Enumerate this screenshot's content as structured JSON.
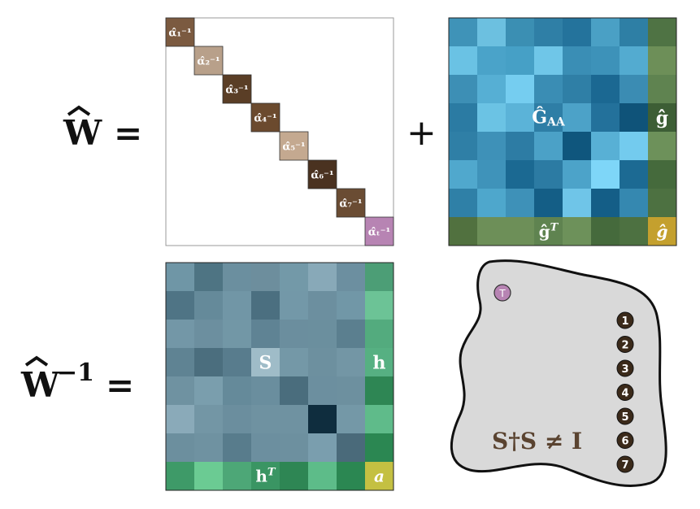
{
  "equations": {
    "w_hat": "Ŵ =",
    "w_hat_inv": "Ŵ⁻¹ =",
    "plus": "+"
  },
  "diag_matrix": {
    "alphas": [
      "α̂₁⁻¹",
      "α̂₂⁻¹",
      "α̂₃⁻¹",
      "α̂₄⁻¹",
      "α̂₅⁻¹",
      "α̂₆⁻¹",
      "α̂₇⁻¹",
      "α̂ₜ⁻¹"
    ],
    "colors": [
      "#7b5a40",
      "#b8a08a",
      "#5a3e26",
      "#6b4a2e",
      "#c4a990",
      "#4a3220",
      "#6a4c33",
      "#b784b3"
    ]
  },
  "g_block": {
    "center_label": "Ĝ_AA",
    "side_label": "ĝ",
    "bottom_label": "ĝ^T",
    "corner_label": "ĝ",
    "grid": [
      [
        "#3f93b8",
        "#6cc0e0",
        "#3b8fb3",
        "#2f7fa6",
        "#24739c",
        "#4aa0c5",
        "#2e7fa5"
      ],
      [
        "#6ac2e4",
        "#4aa3c9",
        "#46a0c6",
        "#6fc6e8",
        "#3a8eb5",
        "#3d92b9",
        "#53abd0"
      ],
      [
        "#3d8fb5",
        "#56afd4",
        "#75cdf0",
        "#3a8db4",
        "#2f7fa6",
        "#1b6892",
        "#3b8cb3"
      ],
      [
        "#2b7ba3",
        "#6bc3e4",
        "#5bb3d8",
        "#2e7ea6",
        "#4ca2c8",
        "#23719b",
        "#0f5379"
      ],
      [
        "#2f7fa6",
        "#3e91b8",
        "#2d7ca4",
        "#4ba1c7",
        "#0f567d",
        "#58b0d5",
        "#73cbee"
      ],
      [
        "#50a8cd",
        "#3f93ba",
        "#1b6992",
        "#2c7ba3",
        "#4ca3c9",
        "#7ed6f8",
        "#1c6a93"
      ],
      [
        "#2f80a7",
        "#4ea7cc",
        "#3e91b8",
        "#145e86",
        "#6fc5e8",
        "#145e87",
        "#3588b0"
      ]
    ],
    "side": [
      "#4f7344",
      "#6d8f58",
      "#5f8350",
      "#3d5e35",
      "#6d915a",
      "#456a3c",
      "#4d7141"
    ],
    "bottom": [
      "#51713f",
      "#6d8f58",
      "#6d8f58",
      "#5f8350",
      "#6d915a",
      "#456a3c",
      "#4d7141"
    ],
    "corner_color": "#c4a02e"
  },
  "s_block": {
    "center_label": "S",
    "side_label": "h",
    "bottom_label": "h^T",
    "corner_label": "a",
    "grid": [
      [
        "#6f96a6",
        "#4e7483",
        "#6b8f9f",
        "#6d8e9d",
        "#7399a8",
        "#88a9b8",
        "#6c8fa0"
      ],
      [
        "#4f7485",
        "#658a9a",
        "#7196a6",
        "#4b6f80",
        "#7398a8",
        "#6c8f9f",
        "#7197a7"
      ],
      [
        "#7397a7",
        "#6c8f9f",
        "#7297a6",
        "#5f8394",
        "#6b8e9e",
        "#6b8f9e",
        "#5b7f8f"
      ],
      [
        "#5f8393",
        "#4b6e7e",
        "#587c8d",
        "#9fbcc8",
        "#7498a7",
        "#6d909f",
        "#7396a5"
      ],
      [
        "#6f92a1",
        "#7a9ead",
        "#658a9a",
        "#6a8e9e",
        "#4a6d7d",
        "#6c8f9f",
        "#6d909f"
      ],
      [
        "#8aaab9",
        "#7396a5",
        "#6b8e9e",
        "#6f92a1",
        "#6f92a1",
        "#0f2d3e",
        "#7498a7"
      ],
      [
        "#6c8f9e",
        "#6f92a1",
        "#587c8c",
        "#6c8f9f",
        "#6d909f",
        "#7a9eae",
        "#4a6a7a"
      ]
    ],
    "side": [
      "#4c9e76",
      "#6cc396",
      "#53ab7e",
      "#56b082",
      "#2e8654",
      "#5fbb8a",
      "#2b8752"
    ],
    "bottom": [
      "#3e9a68",
      "#6bcb93",
      "#4da777",
      "#3a9563",
      "#2e8654",
      "#5dbc89",
      "#2b8752"
    ],
    "corner_color": "#c4c042"
  },
  "blob": {
    "t_label": "T",
    "numbers": [
      "1",
      "2",
      "3",
      "4",
      "5",
      "6",
      "7"
    ],
    "equation": "S†S ≠ I",
    "fill": "#d9d9d9",
    "t_color": "#b784b3",
    "num_color": "#3b2a1a",
    "eq_color": "#5a4330"
  }
}
